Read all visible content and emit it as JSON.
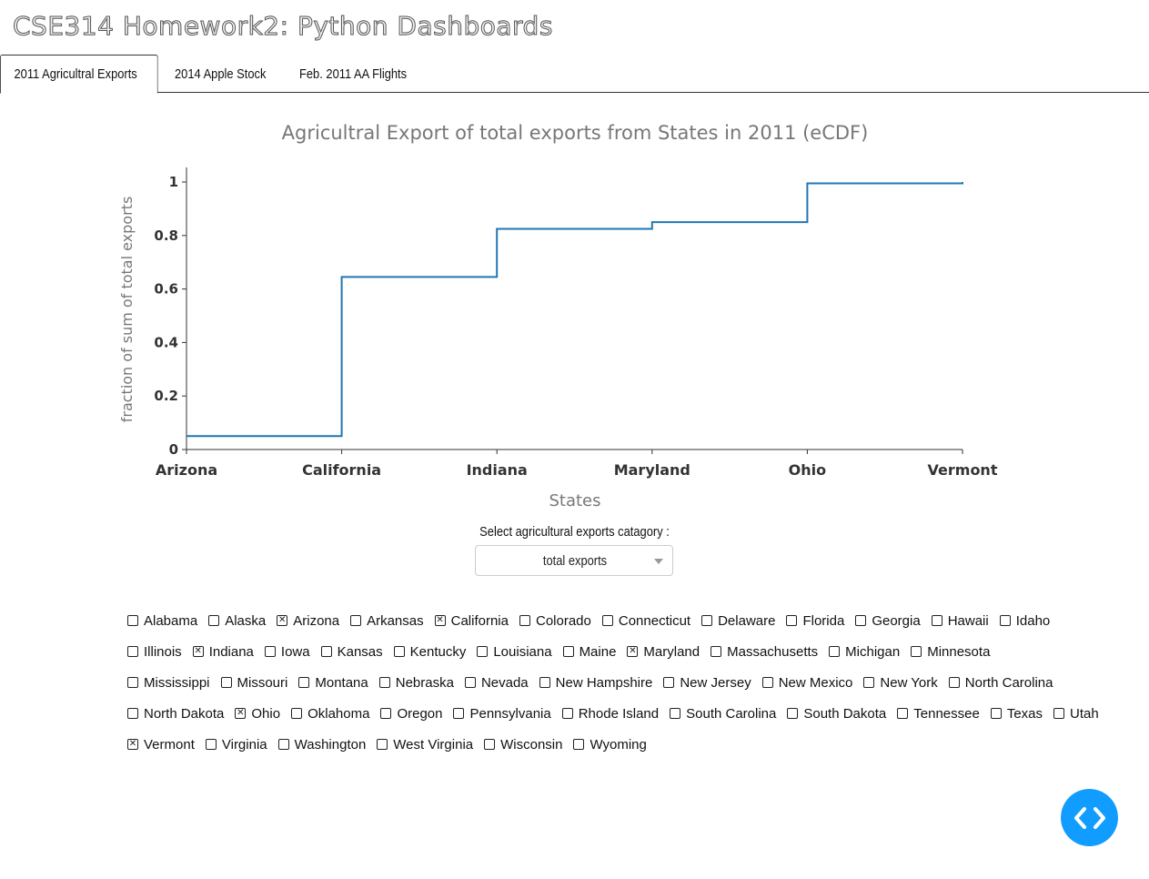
{
  "app": {
    "title": "CSE314 Homework2: Python Dashboards"
  },
  "tabs": [
    {
      "label": "2011 Agricultral Exports",
      "active": true
    },
    {
      "label": "2014 Apple Stock",
      "active": false
    },
    {
      "label": "Feb. 2011 AA Flights",
      "active": false
    }
  ],
  "chart_data": {
    "type": "line",
    "line_shape": "step",
    "title": "Agricultral Export of total exports from States in 2011 (eCDF)",
    "xlabel": "States",
    "ylabel": "fraction of sum of total exports",
    "categories": [
      "Arizona",
      "California",
      "Indiana",
      "Maryland",
      "Ohio",
      "Vermont"
    ],
    "values": [
      0.05,
      0.645,
      0.825,
      0.85,
      0.995,
      1.0
    ],
    "ylim": [
      0,
      1.05
    ],
    "yticks": [
      0,
      0.2,
      0.4,
      0.6,
      0.8,
      1
    ],
    "ytick_labels": [
      "0",
      "0.2",
      "0.4",
      "0.6",
      "0.8",
      "1"
    ],
    "line_color": "#1f77b4",
    "grid": false,
    "legend": "none"
  },
  "dropdown": {
    "label": "Select agricultural exports catagory :",
    "selected": "total exports"
  },
  "checklist": {
    "rows": [
      [
        {
          "label": "Alabama",
          "checked": false
        },
        {
          "label": "Alaska",
          "checked": false
        },
        {
          "label": "Arizona",
          "checked": true
        },
        {
          "label": "Arkansas",
          "checked": false
        },
        {
          "label": "California",
          "checked": true
        },
        {
          "label": "Colorado",
          "checked": false
        },
        {
          "label": "Connecticut",
          "checked": false
        },
        {
          "label": "Delaware",
          "checked": false
        },
        {
          "label": "Florida",
          "checked": false
        },
        {
          "label": "Georgia",
          "checked": false
        },
        {
          "label": "Hawaii",
          "checked": false
        },
        {
          "label": "Idaho",
          "checked": false
        }
      ],
      [
        {
          "label": "Illinois",
          "checked": false
        },
        {
          "label": "Indiana",
          "checked": true
        },
        {
          "label": "Iowa",
          "checked": false
        },
        {
          "label": "Kansas",
          "checked": false
        },
        {
          "label": "Kentucky",
          "checked": false
        },
        {
          "label": "Louisiana",
          "checked": false
        },
        {
          "label": "Maine",
          "checked": false
        },
        {
          "label": "Maryland",
          "checked": true
        },
        {
          "label": "Massachusetts",
          "checked": false
        },
        {
          "label": "Michigan",
          "checked": false
        },
        {
          "label": "Minnesota",
          "checked": false
        }
      ],
      [
        {
          "label": "Mississippi",
          "checked": false
        },
        {
          "label": "Missouri",
          "checked": false
        },
        {
          "label": "Montana",
          "checked": false
        },
        {
          "label": "Nebraska",
          "checked": false
        },
        {
          "label": "Nevada",
          "checked": false
        },
        {
          "label": "New Hampshire",
          "checked": false
        },
        {
          "label": "New Jersey",
          "checked": false
        },
        {
          "label": "New Mexico",
          "checked": false
        },
        {
          "label": "New York",
          "checked": false
        },
        {
          "label": "North Carolina",
          "checked": false
        }
      ],
      [
        {
          "label": "North Dakota",
          "checked": false
        },
        {
          "label": "Ohio",
          "checked": true
        },
        {
          "label": "Oklahoma",
          "checked": false
        },
        {
          "label": "Oregon",
          "checked": false
        },
        {
          "label": "Pennsylvania",
          "checked": false
        },
        {
          "label": "Rhode Island",
          "checked": false
        },
        {
          "label": "South Carolina",
          "checked": false
        },
        {
          "label": "South Dakota",
          "checked": false
        },
        {
          "label": "Tennessee",
          "checked": false
        },
        {
          "label": "Texas",
          "checked": false
        },
        {
          "label": "Utah",
          "checked": false
        }
      ],
      [
        {
          "label": "Vermont",
          "checked": true
        },
        {
          "label": "Virginia",
          "checked": false
        },
        {
          "label": "Washington",
          "checked": false
        },
        {
          "label": "West Virginia",
          "checked": false
        },
        {
          "label": "Wisconsin",
          "checked": false
        },
        {
          "label": "Wyoming",
          "checked": false
        }
      ]
    ]
  },
  "dev_tools": {
    "icon": "code-icon",
    "color": "#119dff"
  }
}
